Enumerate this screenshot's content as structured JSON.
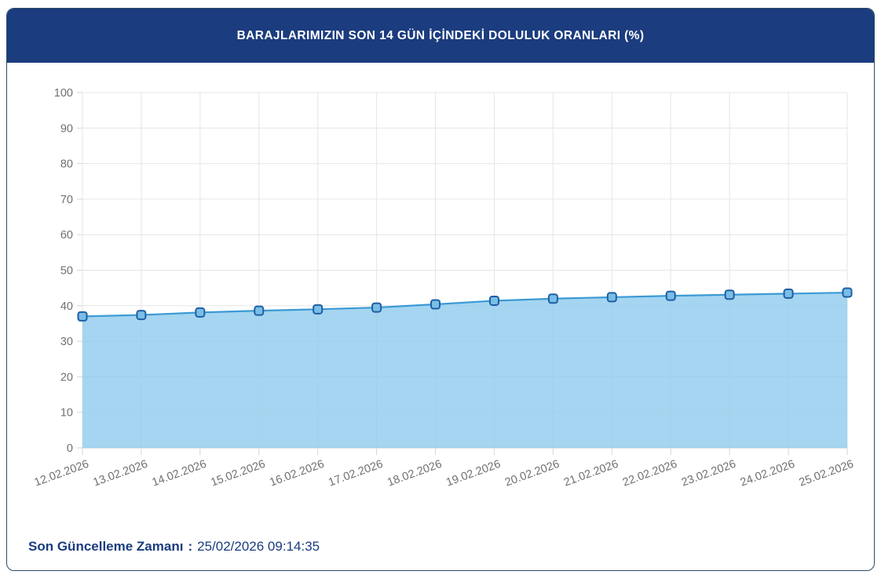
{
  "theme": {
    "header_bg": "#1b3c7e",
    "card_border": "#2e4a63",
    "footer_text": "#1b3c7e"
  },
  "header": {
    "title": "BARAJLARIMIZIN SON 14 GÜN İÇİNDEKİ DOLULUK ORANLARI (%)"
  },
  "footer": {
    "label": "Son Güncelleme Zamanı",
    "separator": ":",
    "value": "25/02/2026 09:14:35"
  },
  "chart_data": {
    "type": "area",
    "title": "BARAJLARIMIZIN SON 14 GÜN İÇİNDEKİ DOLULUK ORANLARI (%)",
    "categories": [
      "12.02.2026",
      "13.02.2026",
      "14.02.2026",
      "15.02.2026",
      "16.02.2026",
      "17.02.2026",
      "18.02.2026",
      "19.02.2026",
      "20.02.2026",
      "21.02.2026",
      "22.02.2026",
      "23.02.2026",
      "24.02.2026",
      "25.02.2026"
    ],
    "values": [
      37.0,
      37.4,
      38.1,
      38.6,
      39.0,
      39.5,
      40.4,
      41.4,
      42.0,
      42.4,
      42.8,
      43.1,
      43.4,
      43.7
    ],
    "xlabel": "",
    "ylabel": "",
    "ylim": [
      0,
      100
    ],
    "ytick_step": 10,
    "grid": true,
    "legend": false,
    "colors": {
      "line": "#3b9ad4",
      "area": "#8ecbec",
      "marker_fill": "#7abde6",
      "marker_stroke": "#1d5fa3",
      "grid": "#e6e6e6",
      "tick": "#d6d6d6",
      "axis_line": "#c9c9c9",
      "axis_text": "#707070"
    }
  }
}
